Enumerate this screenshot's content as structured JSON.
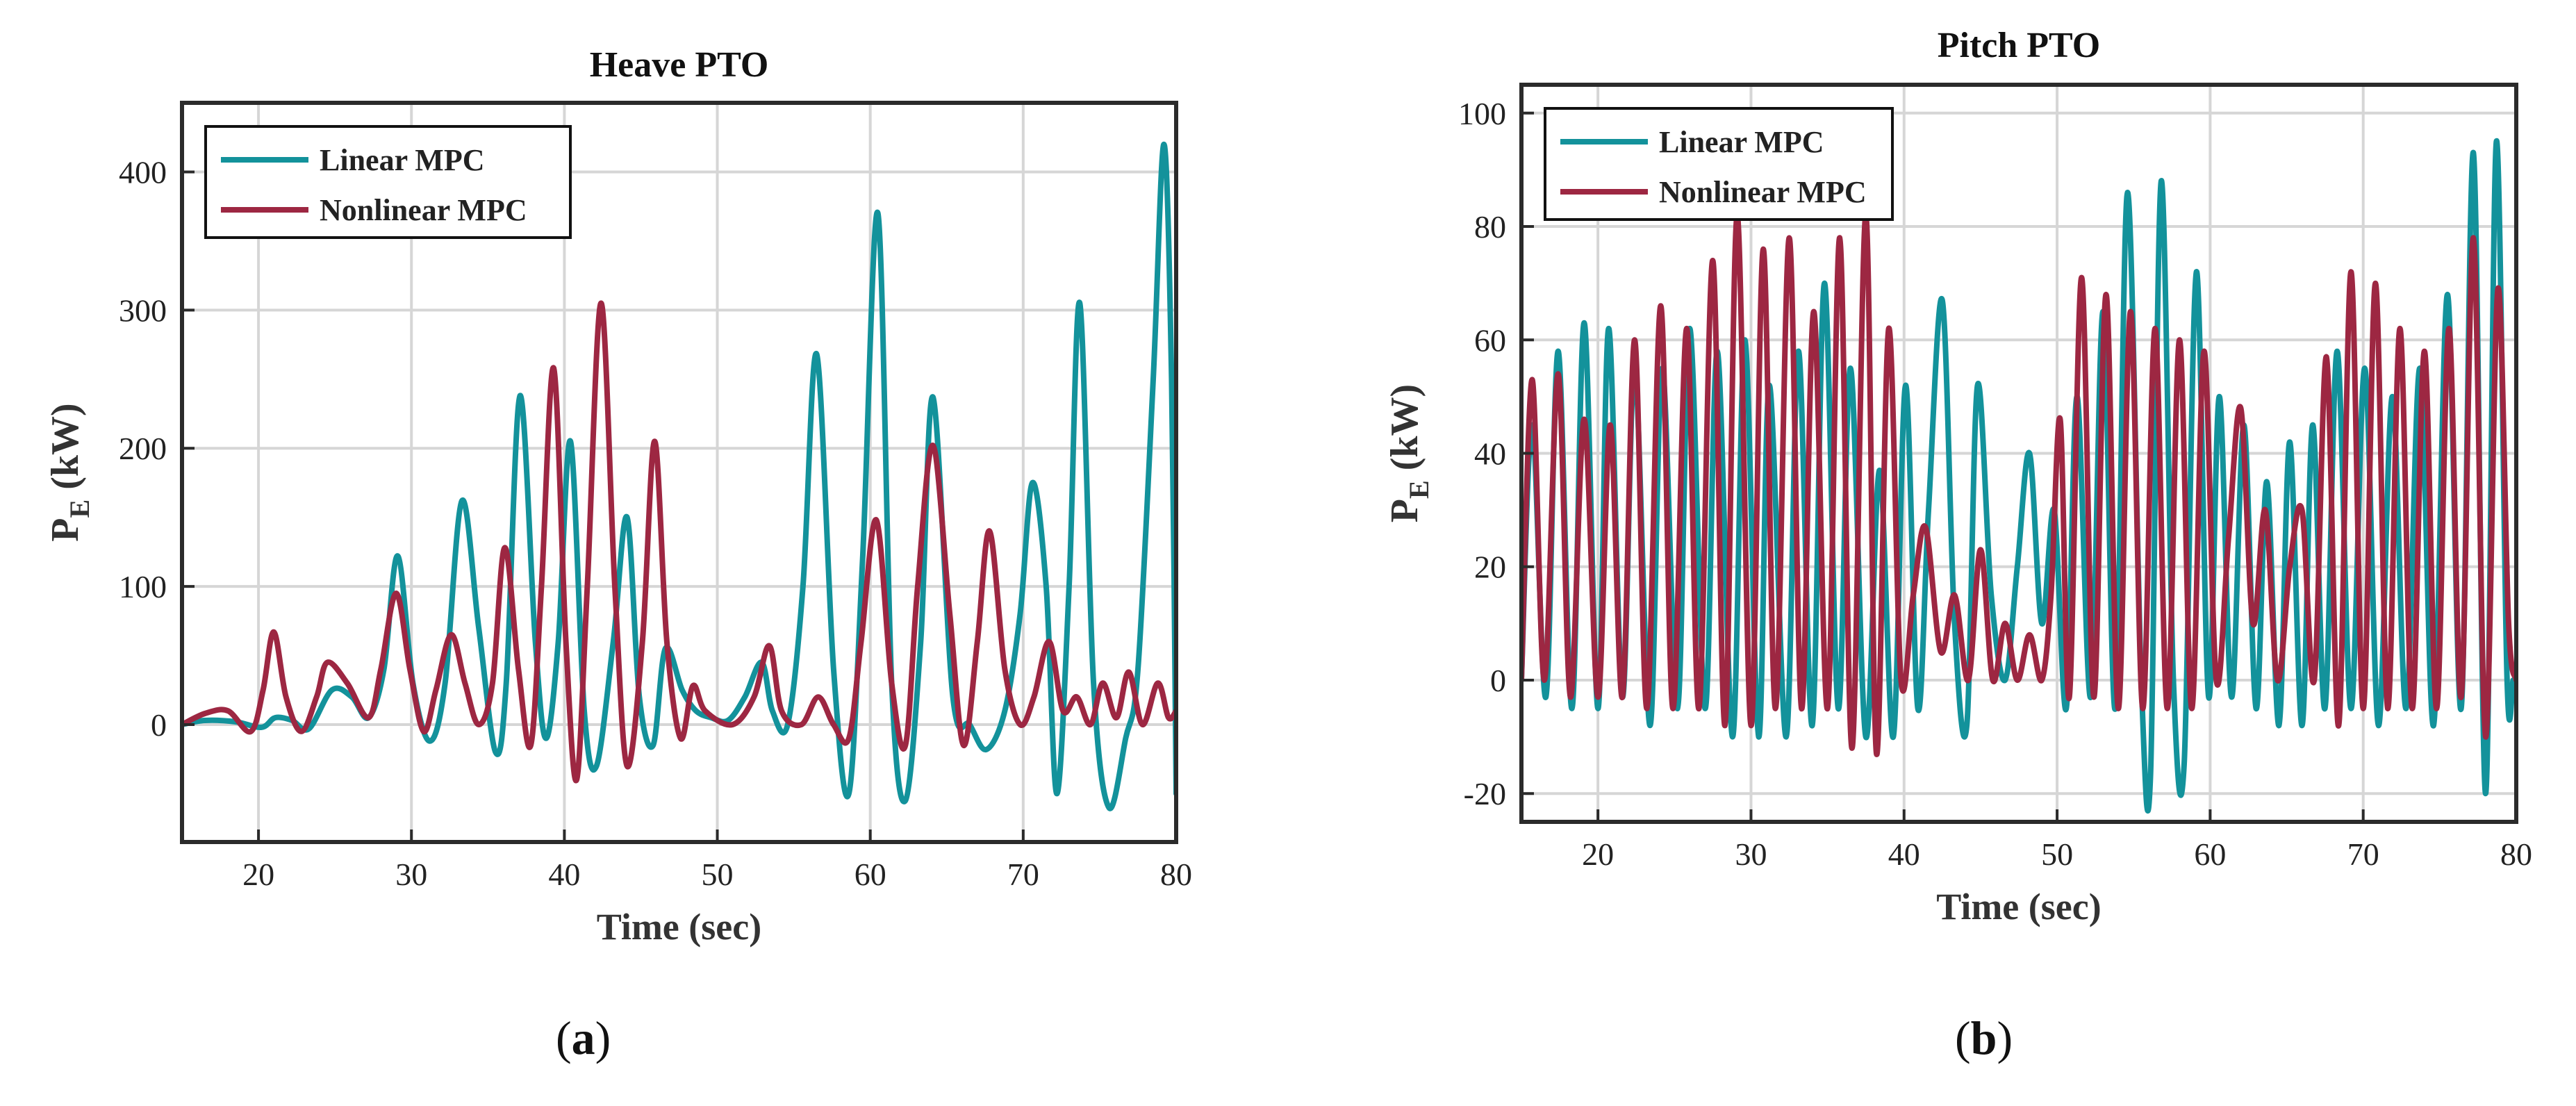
{
  "panels": [
    {
      "label_open": "(",
      "label_letter": "a",
      "label_close": ")"
    },
    {
      "label_open": "(",
      "label_letter": "b",
      "label_close": ")"
    }
  ],
  "colors": {
    "linear": "#13929B",
    "nonlinear": "#9D2742",
    "grid": "#d6d6d6",
    "axis": "#2b2b2b"
  },
  "chart_data": [
    {
      "type": "line",
      "title": "Heave PTO",
      "xlabel": "Time (sec)",
      "ylabel_main": "P",
      "ylabel_sub": "E",
      "ylabel_unit": " (kW)",
      "xlim": [
        15,
        80
      ],
      "ylim": [
        -85,
        450
      ],
      "xticks": [
        20,
        30,
        40,
        50,
        60,
        70,
        80
      ],
      "yticks": [
        0,
        100,
        200,
        300,
        400
      ],
      "grid": true,
      "legend": "top-left",
      "series": [
        {
          "name": "Linear MPC",
          "color": "#13929B",
          "x": [
            15,
            16.5,
            18.5,
            20.2,
            21.1,
            22.2,
            23.3,
            24.8,
            26.1,
            27.2,
            28.2,
            29.1,
            30.1,
            31.2,
            32.2,
            33.3,
            34.4,
            35.5,
            36.2,
            37.1,
            38.1,
            38.8,
            39.6,
            40.4,
            41.3,
            42.1,
            43.2,
            44.1,
            44.9,
            45.8,
            46.6,
            47.7,
            48.6,
            49.6,
            50.7,
            51.8,
            52.9,
            53.6,
            54.6,
            55.6,
            56.5,
            57.6,
            58.6,
            59.5,
            60.5,
            61.4,
            62.3,
            63.3,
            64.1,
            65.4,
            66.5,
            67.6,
            68.8,
            69.8,
            70.6,
            71.5,
            72.2,
            73,
            73.7,
            74.6,
            75.6,
            76.7,
            77.5,
            78.5,
            79.2,
            79.7,
            80
          ],
          "y": [
            0,
            3,
            2,
            -2,
            5,
            3,
            -3,
            25,
            20,
            5,
            40,
            122,
            30,
            -12,
            30,
            162,
            70,
            -20,
            30,
            238,
            60,
            -10,
            60,
            205,
            10,
            -30,
            60,
            150,
            20,
            -15,
            55,
            25,
            10,
            5,
            3,
            20,
            45,
            10,
            0,
            100,
            268,
            40,
            -50,
            120,
            370,
            30,
            -55,
            60,
            237,
            20,
            0,
            -18,
            10,
            80,
            175,
            100,
            -50,
            100,
            305,
            30,
            -60,
            -10,
            40,
            250,
            420,
            250,
            -50
          ]
        },
        {
          "name": "Nonlinear MPC",
          "color": "#9D2742",
          "x": [
            15,
            16.5,
            18,
            19.5,
            20.3,
            21,
            21.8,
            22.8,
            23.8,
            24.5,
            25.8,
            27.2,
            28,
            29,
            29.9,
            30.8,
            31.6,
            32.6,
            33.5,
            34.4,
            35.3,
            36.1,
            37,
            37.8,
            38.5,
            39.3,
            40.1,
            40.8,
            41.5,
            42.4,
            43.3,
            44.1,
            45.1,
            45.9,
            46.7,
            47.6,
            48.4,
            49.2,
            51,
            52.4,
            53.4,
            54.2,
            55.5,
            56.6,
            57.6,
            58.6,
            59.4,
            60.4,
            61.4,
            62.3,
            63.1,
            64.1,
            65.2,
            66.1,
            67,
            67.8,
            68.8,
            69.8,
            70.7,
            71.7,
            72.6,
            73.5,
            74.4,
            75.2,
            76.1,
            76.9,
            77.8,
            78.8,
            79.5,
            80
          ],
          "y": [
            0,
            8,
            10,
            -5,
            25,
            67,
            20,
            -5,
            20,
            45,
            30,
            5,
            40,
            95,
            40,
            -5,
            25,
            65,
            30,
            0,
            30,
            128,
            40,
            -15,
            100,
            258,
            60,
            -40,
            100,
            305,
            100,
            -30,
            60,
            205,
            60,
            -10,
            28,
            10,
            0,
            20,
            57,
            10,
            0,
            20,
            0,
            -10,
            60,
            148,
            30,
            -15,
            100,
            202,
            80,
            -15,
            60,
            140,
            40,
            0,
            20,
            60,
            10,
            20,
            0,
            30,
            5,
            38,
            0,
            30,
            5,
            10
          ]
        }
      ]
    },
    {
      "type": "line",
      "title": "Pitch PTO",
      "xlabel": "Time (sec)",
      "ylabel_main": "P",
      "ylabel_sub": "E",
      "ylabel_unit": " (kW)",
      "xlim": [
        15,
        80
      ],
      "ylim": [
        -25,
        105
      ],
      "xticks": [
        20,
        30,
        40,
        50,
        60,
        70,
        80
      ],
      "yticks": [
        -20,
        0,
        20,
        40,
        60,
        80,
        100
      ],
      "grid": true,
      "legend": "top-left",
      "series": [
        {
          "name": "Linear MPC",
          "color": "#13929B",
          "x": [
            15,
            15.7,
            16.6,
            17.4,
            18.3,
            19.1,
            20,
            20.7,
            21.6,
            22.4,
            23.4,
            24.2,
            25.2,
            26,
            27,
            27.8,
            28.8,
            29.6,
            30.5,
            31.2,
            32.3,
            33.1,
            34,
            34.8,
            35.7,
            36.5,
            37.5,
            38.4,
            39.3,
            40.1,
            40.9,
            41.6,
            42.5,
            43.3,
            44.1,
            44.8,
            45.7,
            46.6,
            47.4,
            48.2,
            49,
            49.8,
            50.6,
            51.3,
            52.2,
            53,
            53.8,
            54.6,
            55.5,
            56.1,
            56.8,
            57.6,
            58.3,
            59.1,
            59.9,
            60.6,
            61.4,
            62.2,
            63,
            63.7,
            64.5,
            65.2,
            66,
            66.7,
            67.5,
            68.3,
            69.2,
            70.1,
            71,
            71.9,
            72.8,
            73.7,
            74.6,
            75.5,
            76.4,
            77.2,
            78,
            78.7,
            79.4,
            79.8,
            80
          ],
          "y": [
            0,
            45,
            -3,
            58,
            -5,
            63,
            -5,
            62,
            -3,
            55,
            -8,
            55,
            -5,
            62,
            -5,
            58,
            -10,
            60,
            -10,
            52,
            -10,
            58,
            -8,
            70,
            -5,
            55,
            -10,
            37,
            -10,
            52,
            -5,
            30,
            67,
            10,
            -8,
            52,
            15,
            0,
            20,
            40,
            10,
            30,
            -5,
            50,
            -3,
            65,
            -5,
            86,
            0,
            -17,
            88,
            0,
            -15,
            72,
            -3,
            50,
            -3,
            45,
            -5,
            35,
            -8,
            42,
            -8,
            45,
            -5,
            58,
            -5,
            55,
            -8,
            50,
            -5,
            55,
            -8,
            68,
            -5,
            93,
            -20,
            95,
            0,
            0,
            0
          ]
        },
        {
          "name": "Nonlinear MPC",
          "color": "#9D2742",
          "x": [
            15,
            15.7,
            16.5,
            17.4,
            18.2,
            19.1,
            20,
            20.8,
            21.6,
            22.4,
            23.2,
            24.1,
            24.9,
            25.8,
            26.6,
            27.5,
            28.3,
            29.1,
            30,
            30.8,
            31.6,
            32.5,
            33.3,
            34.1,
            35,
            35.8,
            36.6,
            37.5,
            38.2,
            39,
            39.8,
            40.6,
            41.4,
            42.4,
            43.3,
            44.2,
            45,
            45.8,
            46.6,
            47.4,
            48.2,
            49,
            49.6,
            50.2,
            50.8,
            51.6,
            52.4,
            53.2,
            54,
            54.8,
            55.6,
            56.4,
            57.2,
            58,
            58.8,
            59.6,
            60.4,
            61.2,
            62,
            62.8,
            63.6,
            64.4,
            65.2,
            66,
            66.8,
            67.6,
            68.4,
            69.2,
            70,
            70.8,
            71.6,
            72.4,
            73.2,
            74,
            74.8,
            75.6,
            76.4,
            77.2,
            78,
            78.8,
            79.5,
            80
          ],
          "y": [
            0,
            53,
            0,
            54,
            -3,
            46,
            -3,
            45,
            -3,
            60,
            -5,
            66,
            -5,
            62,
            -5,
            74,
            -8,
            82,
            -8,
            76,
            -5,
            78,
            -5,
            65,
            -5,
            78,
            -12,
            82,
            -13,
            62,
            0,
            15,
            27,
            5,
            15,
            0,
            23,
            0,
            10,
            0,
            8,
            0,
            15,
            46,
            -3,
            71,
            -3,
            68,
            -5,
            65,
            -5,
            62,
            -5,
            60,
            -5,
            58,
            0,
            25,
            48,
            10,
            30,
            0,
            20,
            30,
            0,
            57,
            -8,
            72,
            -5,
            70,
            -5,
            62,
            -5,
            58,
            -5,
            62,
            -3,
            78,
            -10,
            69,
            10,
            0
          ]
        }
      ]
    }
  ]
}
